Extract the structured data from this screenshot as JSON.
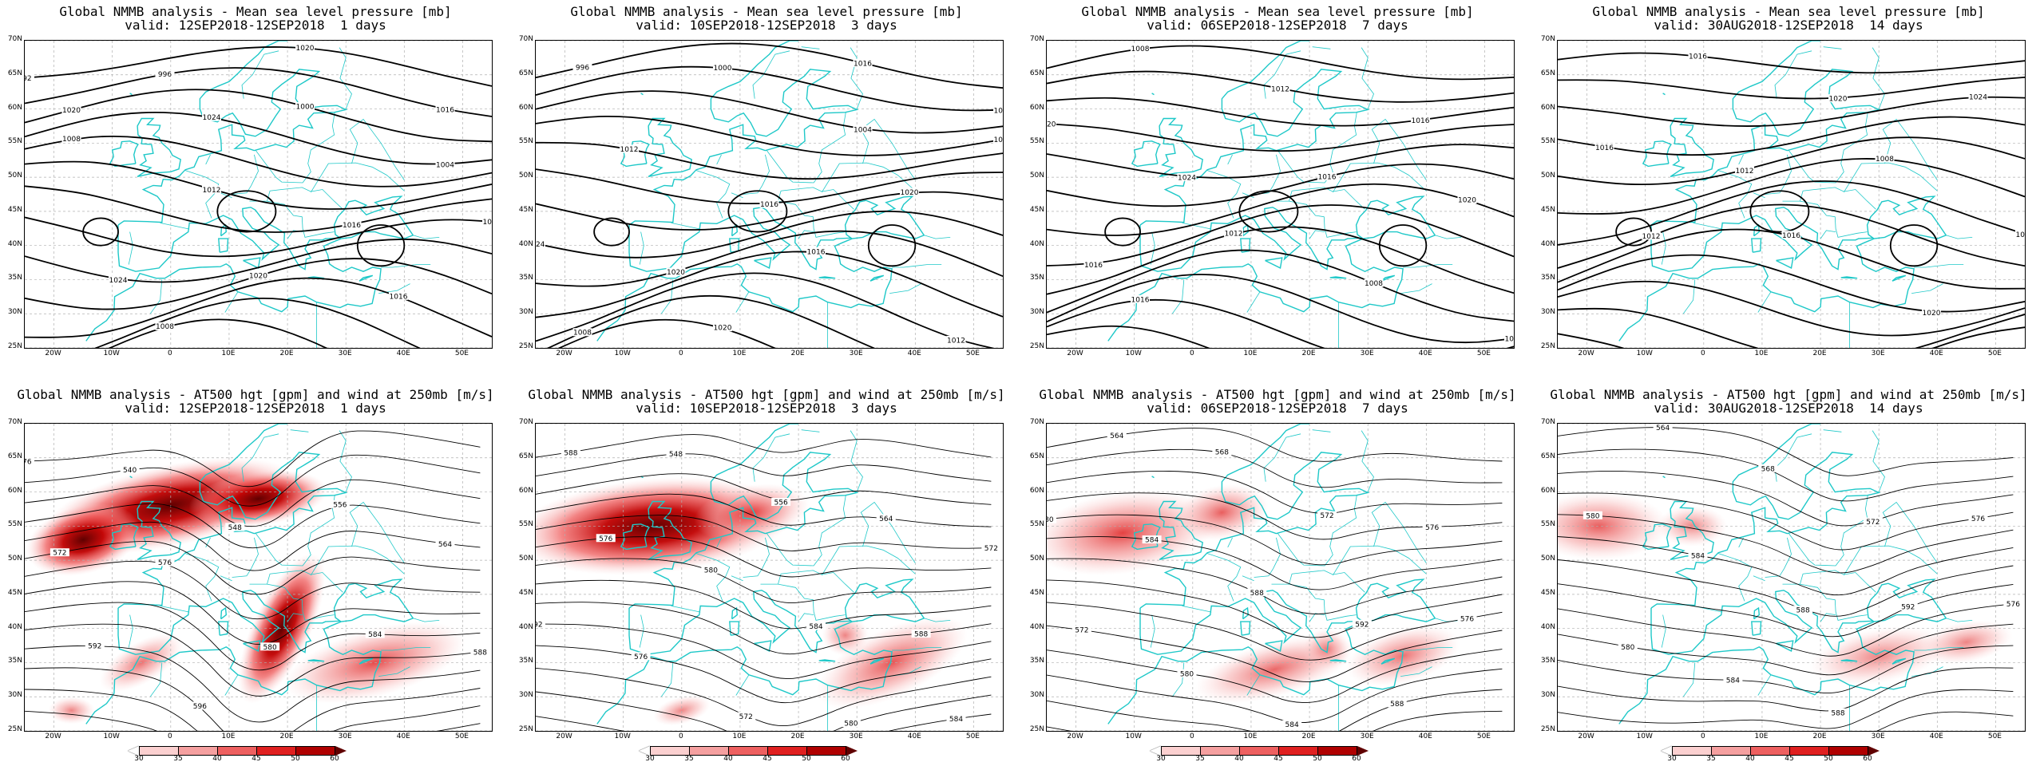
{
  "panels": [
    {
      "title1": "Global NMMB analysis - Mean sea level pressure [mb]",
      "title2": "valid: 12SEP2018-12SEP2018  1 days",
      "type": "mslp",
      "contour_labels": [
        "992",
        "996",
        "1000",
        "1004",
        "1008",
        "1012",
        "1016",
        "1020",
        "1024",
        "1020",
        "1016",
        "1012",
        "1008",
        "1020",
        "1016",
        "1020",
        "1024"
      ]
    },
    {
      "title1": "Global NMMB analysis - Mean sea level pressure [mb]",
      "title2": "valid: 10SEP2018-12SEP2018  3 days",
      "type": "mslp",
      "contour_labels": [
        "996",
        "1000",
        "1004",
        "1008",
        "1012",
        "1016",
        "1020",
        "1024",
        "1020",
        "1016",
        "1012",
        "1008",
        "1020",
        "1016",
        "1024"
      ]
    },
    {
      "title1": "Global NMMB analysis - Mean sea level pressure [mb]",
      "title2": "valid: 06SEP2018-12SEP2018  7 days",
      "type": "mslp",
      "contour_labels": [
        "1008",
        "1012",
        "1016",
        "1020",
        "1024",
        "1016",
        "1020",
        "1016",
        "1012",
        "1008",
        "1012",
        "1016",
        "1020"
      ]
    },
    {
      "title1": "Global NMMB analysis - Mean sea level pressure [mb]",
      "title2": "valid: 30AUG2018-12SEP2018  14 days",
      "type": "mslp",
      "contour_labels": [
        "1016",
        "1020",
        "1024",
        "1016",
        "1012",
        "1008",
        "1004",
        "1012",
        "1016",
        "1020"
      ]
    },
    {
      "title1": "Global NMMB analysis - AT500 hgt [gpm] and wind at 250mb [m/s]",
      "title2": "valid: 12SEP2018-12SEP2018  1 days",
      "type": "z500",
      "contour_labels": [
        "536",
        "540",
        "548",
        "556",
        "564",
        "572",
        "576",
        "580",
        "584",
        "588",
        "592",
        "596",
        "588",
        "584",
        "576"
      ]
    },
    {
      "title1": "Global NMMB analysis - AT500 hgt [gpm] and wind at 250mb [m/s]",
      "title2": "valid: 10SEP2018-12SEP2018  3 days",
      "type": "z500",
      "contour_labels": [
        "540",
        "548",
        "556",
        "564",
        "572",
        "576",
        "580",
        "584",
        "588",
        "592",
        "576",
        "572",
        "580",
        "584",
        "588"
      ]
    },
    {
      "title1": "Global NMMB analysis - AT500 hgt [gpm] and wind at 250mb [m/s]",
      "title2": "valid: 06SEP2018-12SEP2018  7 days",
      "type": "z500",
      "contour_labels": [
        "564",
        "568",
        "572",
        "576",
        "580",
        "584",
        "588",
        "592",
        "576",
        "572",
        "580",
        "584",
        "588"
      ]
    },
    {
      "title1": "Global NMMB analysis - AT500 hgt [gpm] and wind at 250mb [m/s]",
      "title2": "valid: 30AUG2018-12SEP2018  14 days",
      "type": "z500",
      "contour_labels": [
        "564",
        "568",
        "572",
        "576",
        "580",
        "584",
        "588",
        "592",
        "576",
        "580",
        "584",
        "588"
      ]
    }
  ],
  "lat_ticks": [
    "70N",
    "65N",
    "60N",
    "55N",
    "50N",
    "45N",
    "40N",
    "35N",
    "30N",
    "25N"
  ],
  "lon_ticks": [
    "20W",
    "10W",
    "0",
    "10E",
    "20E",
    "30E",
    "40E",
    "50E"
  ],
  "colorbar": {
    "labels": [
      "30",
      "35",
      "40",
      "45",
      "50",
      "60"
    ],
    "colors": [
      "#ffffff",
      "#fbd0d0",
      "#f5a0a0",
      "#ee6060",
      "#e02020",
      "#b00000",
      "#600000"
    ]
  },
  "colors": {
    "coast": "#1ec8c8",
    "contour": "#000000",
    "grid": "#b0b0b0"
  }
}
